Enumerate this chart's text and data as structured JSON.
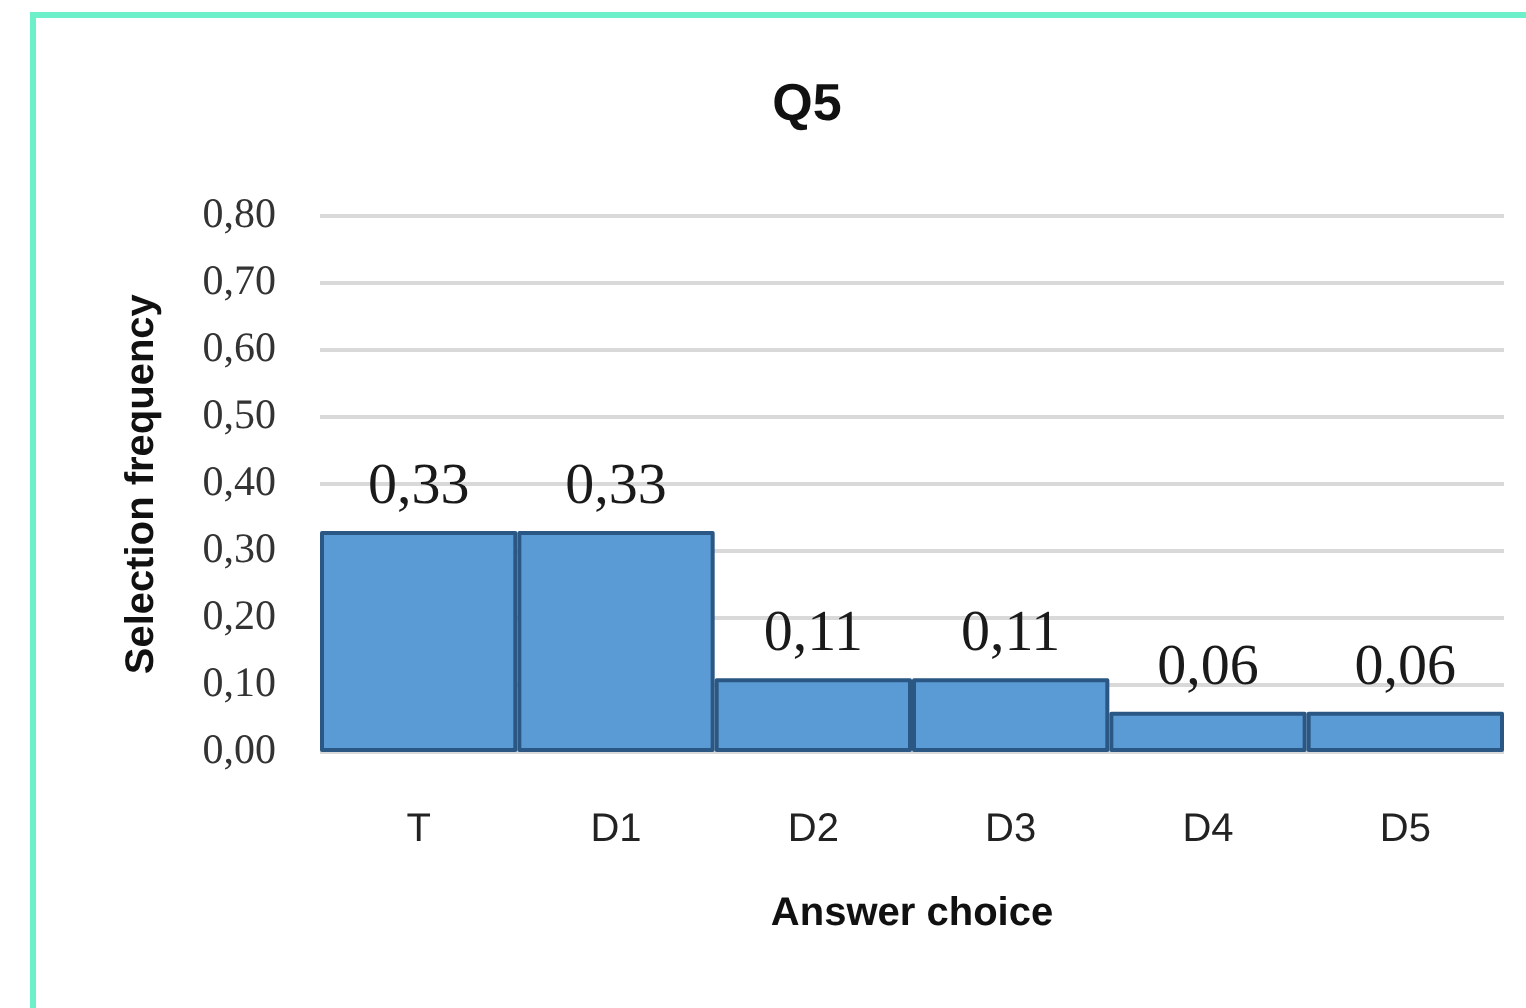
{
  "chart_data": {
    "type": "bar",
    "title": "Q5",
    "xlabel": "Answer choice",
    "ylabel": "Selection frequency",
    "categories": [
      "T",
      "D1",
      "D2",
      "D3",
      "D4",
      "D5"
    ],
    "values": [
      0.33,
      0.33,
      0.11,
      0.11,
      0.06,
      0.06
    ],
    "value_labels": [
      "0,33",
      "0,33",
      "0,11",
      "0,11",
      "0,06",
      "0,06"
    ],
    "color": "#5b9bd5",
    "ylim": [
      0,
      0.8
    ],
    "yticks": [
      {
        "value": 0,
        "label": "0,00"
      },
      {
        "value": 0.1,
        "label": "0,10"
      },
      {
        "value": 0.2,
        "label": "0,20"
      },
      {
        "value": 0.3,
        "label": "0,30"
      },
      {
        "value": 0.4,
        "label": "0,40"
      },
      {
        "value": 0.5,
        "label": "0,50"
      },
      {
        "value": 0.6,
        "label": "0,60"
      },
      {
        "value": 0.7,
        "label": "0,70"
      },
      {
        "value": 0.8,
        "label": "0,80"
      }
    ],
    "grid": "y"
  }
}
